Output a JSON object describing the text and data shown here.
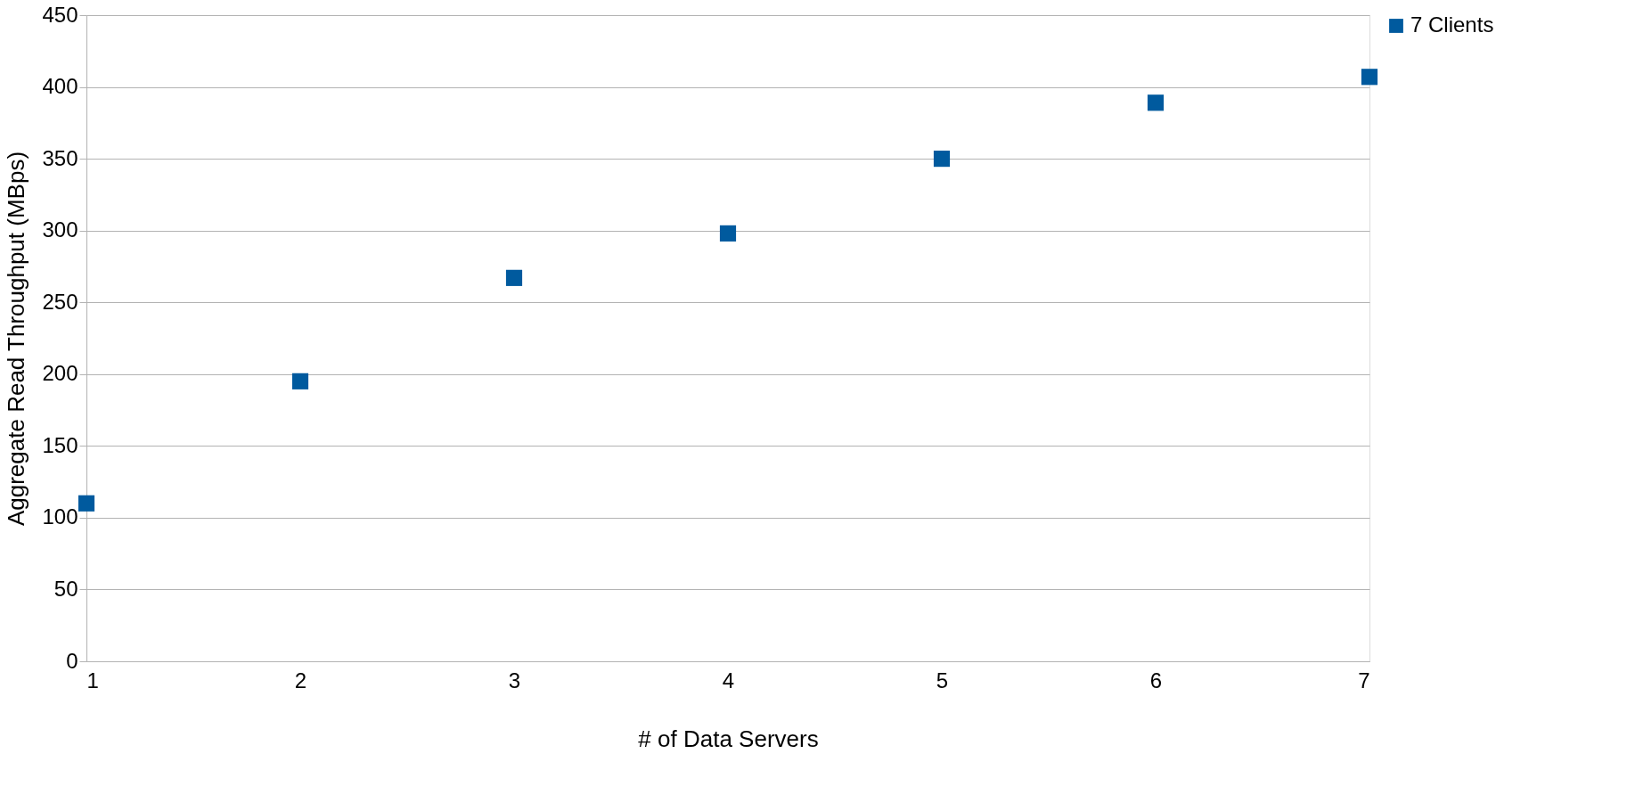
{
  "chart_data": {
    "type": "scatter",
    "xlabel": "# of Data Servers",
    "ylabel": "Aggregate Read Throughput (MBps)",
    "x": [
      1,
      2,
      3,
      4,
      5,
      6,
      7
    ],
    "series": [
      {
        "name": "7 Clients",
        "color": "#005a9e",
        "values": [
          110,
          195,
          267,
          298,
          350,
          389,
          407
        ]
      }
    ],
    "xlim": [
      1,
      7
    ],
    "xticks": [
      1,
      2,
      3,
      4,
      5,
      6,
      7
    ],
    "ylim": [
      0,
      450
    ],
    "yticks": [
      0,
      50,
      100,
      150,
      200,
      250,
      300,
      350,
      400,
      450
    ],
    "grid": "y",
    "legend": "right",
    "marker": "square"
  }
}
